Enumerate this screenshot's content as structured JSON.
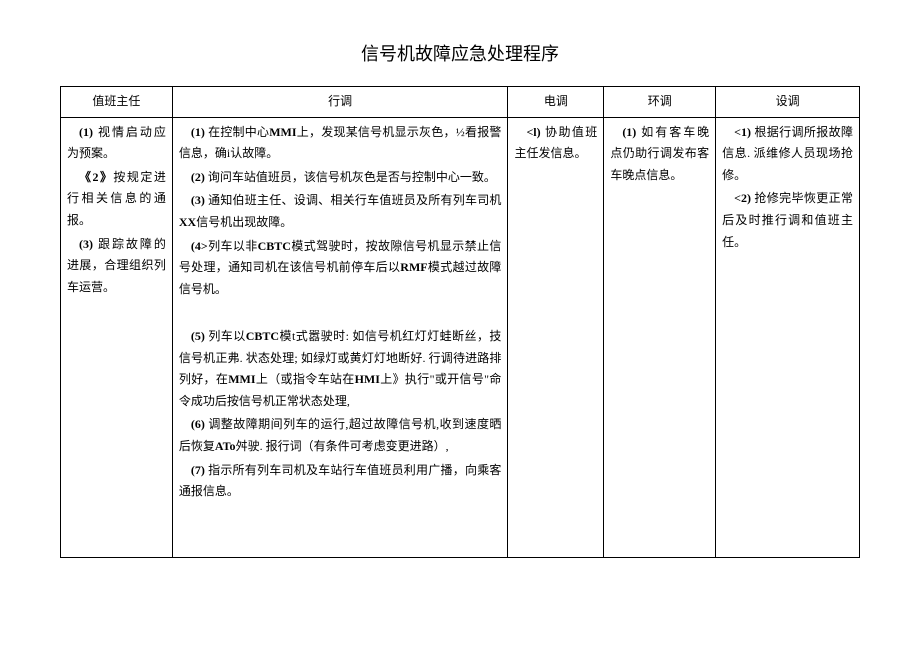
{
  "title": "信号机故障应急处理程序",
  "headers": {
    "col1": "值班主任",
    "col2": "行调",
    "col3": "电调",
    "col4": "环调",
    "col5": "设调"
  },
  "col1": {
    "p1a": "(1)",
    "p1b": " 视情启动应为预案。",
    "p2a": "《2》",
    "p2b": "按规定进行相关信息的通报。",
    "p3a": "(3)",
    "p3b": " 跟踪故障的进展，合理组织列车运营。"
  },
  "col2": {
    "p1a": "(1)",
    "p1b": " 在控制中心",
    "p1c": "MMI",
    "p1d": "上，发现某信号机显示灰色，½看报警信息，确i认故障。",
    "p2a": "(2)",
    "p2b": " 询问车站值班员，该信号机灰色是否与控制中心一致。",
    "p3a": "(3)",
    "p3b": " 通知伯班主任、设调、相关行车值班员及所有列车司机",
    "p3c": "XX",
    "p3d": "信号机出现故障。",
    "p4a": "(4>",
    "p4b": "列车以非",
    "p4c": "CBTC",
    "p4d": "模式驾驶时，按故隙信号机显示禁止信号处理，通知司机在该信号机前停车后以",
    "p4e": "RMF",
    "p4f": "模式越过故障信号机。",
    "p5a": "(5)",
    "p5b": " 列车以",
    "p5c": "CBTC",
    "p5d": "模t式嚣驶时: 如信号机红灯灯蛙断丝，技信号机正弗. 状态处理; 如绿灯或黄灯灯地断好. 行调待进路排列好，在",
    "p5e": "MMI",
    "p5f": "上（或指令车站在",
    "p5g": "HMI",
    "p5h": "上》执行\"或开信号\"命令成功后按信号机正常状态处理,",
    "p6a": "(6)",
    "p6b": " 调整故障期间列车的运行,超过故障信号机,收到速度晒后恢复",
    "p6c": "ATo",
    "p6d": "舛驶. 报行词（有条件可考虑变更进路）,",
    "p7a": "(7)",
    "p7b": " 指示所有列车司机及车站行车值班员利用广播，向乘客通报信息。"
  },
  "col3": {
    "p1a": "<l)",
    "p1b": " 协助值班主任发信息。"
  },
  "col4": {
    "p1a": "(1)",
    "p1b": " 如有客车晚点仍助行调发布客车晚点信息。"
  },
  "col5": {
    "p1a": "<1)",
    "p1b": " 根据行调所报故障信息. 派维修人员现场抢修。",
    "p2a": "<2)",
    "p2b": " 抢修完毕恢更正常后及时推行调和值班主任。"
  }
}
